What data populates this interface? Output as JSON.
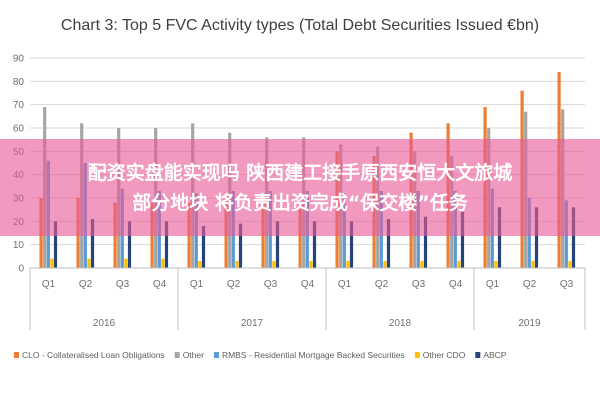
{
  "chart_data": {
    "type": "bar",
    "title": "Chart 3: Top 5 FVC Activity types (Total Debt Securities Issued €bn)",
    "ylim": [
      0,
      90
    ],
    "yticks": [
      0,
      10,
      20,
      30,
      40,
      50,
      60,
      70,
      80,
      90
    ],
    "categories": [
      "Q1",
      "Q2",
      "Q3",
      "Q4",
      "Q1",
      "Q2",
      "Q3",
      "Q4",
      "Q1",
      "Q2",
      "Q3",
      "Q4",
      "Q1",
      "Q2",
      "Q3"
    ],
    "years": [
      {
        "label": "2016",
        "quarters": 4
      },
      {
        "label": "2017",
        "quarters": 4
      },
      {
        "label": "2018",
        "quarters": 4
      },
      {
        "label": "2019",
        "quarters": 3
      }
    ],
    "grid": true,
    "legend_position": "bottom",
    "series": [
      {
        "name": "CLO - Collateralised Loan Obligations",
        "color": "#ED7D31",
        "values": [
          30,
          30,
          28,
          28,
          28,
          30,
          28,
          29,
          50,
          48,
          58,
          62,
          69,
          76,
          84
        ]
      },
      {
        "name": "Other",
        "color": "#A5A5A5",
        "values": [
          69,
          62,
          60,
          60,
          62,
          58,
          56,
          56,
          53,
          52,
          50,
          48,
          60,
          67,
          68
        ]
      },
      {
        "name": "RMBS - Residential Mortgage Backed Securities",
        "color": "#5B9BD5",
        "values": [
          46,
          45,
          34,
          33,
          32,
          33,
          33,
          33,
          32,
          33,
          33,
          33,
          34,
          30,
          29
        ]
      },
      {
        "name": "Other CDO",
        "color": "#FFC000",
        "values": [
          4,
          4,
          4,
          4,
          3,
          3,
          3,
          3,
          3,
          3,
          3,
          3,
          3,
          3,
          3
        ]
      },
      {
        "name": "ABCP",
        "color": "#264478",
        "values": [
          20,
          21,
          20,
          20,
          18,
          19,
          20,
          20,
          20,
          21,
          22,
          24,
          26,
          26,
          26
        ]
      }
    ]
  },
  "overlay": {
    "line1": "配资实盘能实现吗 陕西建工接手原西安恒大文旅城",
    "line2": "部分地块 将负责出资完成“保交楼”任务"
  }
}
